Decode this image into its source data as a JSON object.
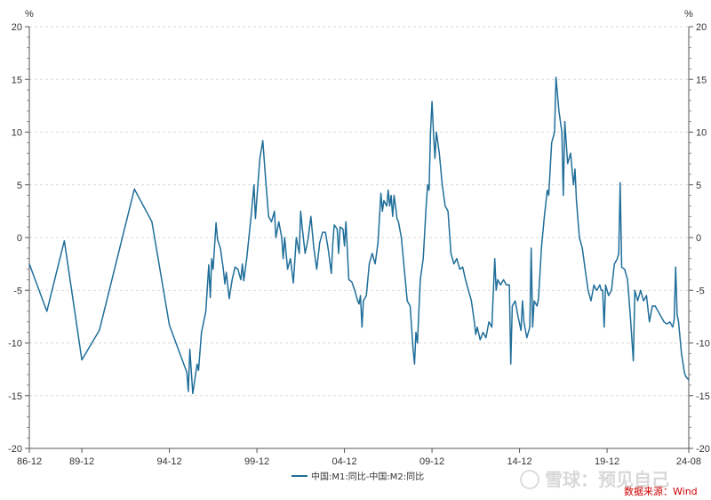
{
  "chart_data": {
    "type": "line",
    "title": "",
    "xlabel": "",
    "ylabel": "%",
    "ylabel_right": "%",
    "ylim": [
      -20,
      20
    ],
    "yticks": [
      20,
      15,
      10,
      5,
      0,
      -5,
      -10,
      -15,
      -20
    ],
    "grid": true,
    "legend_position": "bottom",
    "line_color": "#1f6e99",
    "xlim": [
      "1986-12",
      "2024-08"
    ],
    "xtick_labels": [
      "86-12",
      "89-12",
      "94-12",
      "99-12",
      "04-12",
      "09-12",
      "14-12",
      "19-12",
      "24-08"
    ],
    "xtick_dates": [
      "1986-12",
      "1989-12",
      "1994-12",
      "1999-12",
      "2004-12",
      "2009-12",
      "2014-12",
      "2019-12",
      "2024-08"
    ],
    "series": [
      {
        "name": "中国:M1:同比-中国:M2:同比",
        "points": [
          [
            "1986-12",
            -2.5
          ],
          [
            "1987-12",
            -7.0
          ],
          [
            "1988-12",
            -0.3
          ],
          [
            "1989-12",
            -11.6
          ],
          [
            "1990-12",
            -8.8
          ],
          [
            "1992-12",
            4.6
          ],
          [
            "1993-12",
            1.5
          ],
          [
            "1994-12",
            -8.3
          ],
          [
            "1995-12",
            -12.8
          ],
          [
            "1996-01",
            -14.6
          ],
          [
            "1996-02",
            -10.6
          ],
          [
            "1996-04",
            -14.8
          ],
          [
            "1996-07",
            -12.0
          ],
          [
            "1996-08",
            -12.6
          ],
          [
            "1996-10",
            -9.0
          ],
          [
            "1997-01",
            -7.0
          ],
          [
            "1997-03",
            -2.6
          ],
          [
            "1997-04",
            -5.7
          ],
          [
            "1997-05",
            -2.0
          ],
          [
            "1997-06",
            -3.0
          ],
          [
            "1997-08",
            1.4
          ],
          [
            "1997-09",
            -0.2
          ],
          [
            "1997-11",
            -1.0
          ],
          [
            "1998-01",
            -3.0
          ],
          [
            "1998-02",
            -4.4
          ],
          [
            "1998-03",
            -3.3
          ],
          [
            "1998-05",
            -5.8
          ],
          [
            "1998-07",
            -4.0
          ],
          [
            "1998-09",
            -2.8
          ],
          [
            "1998-11",
            -3.0
          ],
          [
            "1999-01",
            -4.0
          ],
          [
            "1999-02",
            -2.5
          ],
          [
            "1999-03",
            -4.1
          ],
          [
            "1999-05",
            -2.0
          ],
          [
            "1999-08",
            2.0
          ],
          [
            "1999-10",
            5.0
          ],
          [
            "1999-11",
            1.8
          ],
          [
            "1999-12",
            3.8
          ],
          [
            "2000-02",
            7.5
          ],
          [
            "2000-04",
            9.2
          ],
          [
            "2000-06",
            5.5
          ],
          [
            "2000-08",
            2.0
          ],
          [
            "2000-10",
            1.5
          ],
          [
            "2000-12",
            2.5
          ],
          [
            "2001-01",
            0.0
          ],
          [
            "2001-03",
            1.5
          ],
          [
            "2001-05",
            0.0
          ],
          [
            "2001-06",
            -2.0
          ],
          [
            "2001-07",
            0.0
          ],
          [
            "2001-09",
            -3.0
          ],
          [
            "2001-11",
            -2.0
          ],
          [
            "2002-01",
            -4.3
          ],
          [
            "2002-03",
            0.0
          ],
          [
            "2002-05",
            -1.5
          ],
          [
            "2002-06",
            2.5
          ],
          [
            "2002-07",
            1.0
          ],
          [
            "2002-09",
            -1.5
          ],
          [
            "2002-11",
            -0.2
          ],
          [
            "2003-01",
            2.0
          ],
          [
            "2003-03",
            -1.0
          ],
          [
            "2003-05",
            -3.0
          ],
          [
            "2003-07",
            -0.5
          ],
          [
            "2003-09",
            0.5
          ],
          [
            "2003-11",
            0.5
          ],
          [
            "2004-01",
            -1.2
          ],
          [
            "2004-03",
            -3.4
          ],
          [
            "2004-04",
            -0.5
          ],
          [
            "2004-05",
            1.2
          ],
          [
            "2004-07",
            0.8
          ],
          [
            "2004-08",
            -1.5
          ],
          [
            "2004-09",
            1.0
          ],
          [
            "2004-11",
            0.8
          ],
          [
            "2004-12",
            -0.8
          ],
          [
            "2005-01",
            1.5
          ],
          [
            "2005-03",
            -4.0
          ],
          [
            "2005-05",
            -4.2
          ],
          [
            "2005-07",
            -5.0
          ],
          [
            "2005-09",
            -6.0
          ],
          [
            "2005-10",
            -6.3
          ],
          [
            "2005-11",
            -5.5
          ],
          [
            "2005-12",
            -8.5
          ],
          [
            "2006-01",
            -6.0
          ],
          [
            "2006-03",
            -5.5
          ],
          [
            "2006-05",
            -2.5
          ],
          [
            "2006-07",
            -1.5
          ],
          [
            "2006-09",
            -2.5
          ],
          [
            "2006-11",
            -0.5
          ],
          [
            "2007-01",
            4.2
          ],
          [
            "2007-02",
            2.5
          ],
          [
            "2007-03",
            3.5
          ],
          [
            "2007-05",
            3.0
          ],
          [
            "2007-06",
            4.5
          ],
          [
            "2007-07",
            3.0
          ],
          [
            "2007-08",
            4.0
          ],
          [
            "2007-09",
            2.0
          ],
          [
            "2007-10",
            4.0
          ],
          [
            "2007-11",
            3.0
          ],
          [
            "2007-12",
            1.8
          ],
          [
            "2008-01",
            1.5
          ],
          [
            "2008-03",
            0.0
          ],
          [
            "2008-05",
            -3.0
          ],
          [
            "2008-07",
            -6.0
          ],
          [
            "2008-09",
            -6.5
          ],
          [
            "2008-10",
            -8.5
          ],
          [
            "2008-11",
            -10.5
          ],
          [
            "2008-12",
            -12.0
          ],
          [
            "2009-01",
            -9.0
          ],
          [
            "2009-02",
            -10.0
          ],
          [
            "2009-04",
            -4.0
          ],
          [
            "2009-06",
            -2.0
          ],
          [
            "2009-08",
            3.0
          ],
          [
            "2009-09",
            5.0
          ],
          [
            "2009-10",
            4.5
          ],
          [
            "2009-11",
            10.0
          ],
          [
            "2009-12",
            12.9
          ],
          [
            "2010-01",
            10.0
          ],
          [
            "2010-02",
            7.5
          ],
          [
            "2010-03",
            10.0
          ],
          [
            "2010-05",
            8.0
          ],
          [
            "2010-07",
            5.0
          ],
          [
            "2010-09",
            3.0
          ],
          [
            "2010-11",
            2.5
          ],
          [
            "2011-01",
            -1.5
          ],
          [
            "2011-03",
            -2.5
          ],
          [
            "2011-05",
            -2.0
          ],
          [
            "2011-07",
            -3.0
          ],
          [
            "2011-09",
            -2.8
          ],
          [
            "2011-11",
            -4.0
          ],
          [
            "2012-01",
            -5.0
          ],
          [
            "2012-03",
            -6.0
          ],
          [
            "2012-05",
            -8.0
          ],
          [
            "2012-06",
            -9.2
          ],
          [
            "2012-07",
            -8.5
          ],
          [
            "2012-09",
            -9.7
          ],
          [
            "2012-11",
            -9.0
          ],
          [
            "2013-01",
            -9.5
          ],
          [
            "2013-03",
            -8.0
          ],
          [
            "2013-05",
            -8.5
          ],
          [
            "2013-07",
            -2.0
          ],
          [
            "2013-08",
            -5.0
          ],
          [
            "2013-09",
            -4.0
          ],
          [
            "2013-11",
            -4.5
          ],
          [
            "2014-01",
            -4.0
          ],
          [
            "2014-03",
            -4.5
          ],
          [
            "2014-05",
            -4.5
          ],
          [
            "2014-06",
            -12.0
          ],
          [
            "2014-07",
            -6.5
          ],
          [
            "2014-09",
            -6.0
          ],
          [
            "2014-11",
            -7.5
          ],
          [
            "2015-01",
            -8.8
          ],
          [
            "2015-02",
            -6.0
          ],
          [
            "2015-03",
            -8.0
          ],
          [
            "2015-05",
            -9.5
          ],
          [
            "2015-07",
            -8.5
          ],
          [
            "2015-08",
            -1.0
          ],
          [
            "2015-09",
            -8.5
          ],
          [
            "2015-10",
            -6.0
          ],
          [
            "2015-12",
            -6.5
          ],
          [
            "2016-01",
            -5.8
          ],
          [
            "2016-03",
            -1.0
          ],
          [
            "2016-05",
            2.0
          ],
          [
            "2016-07",
            4.5
          ],
          [
            "2016-08",
            4.0
          ],
          [
            "2016-10",
            9.0
          ],
          [
            "2016-12",
            10.0
          ],
          [
            "2017-01",
            15.2
          ],
          [
            "2017-03",
            12.0
          ],
          [
            "2017-05",
            10.0
          ],
          [
            "2017-06",
            4.0
          ],
          [
            "2017-07",
            11.0
          ],
          [
            "2017-09",
            7.0
          ],
          [
            "2017-11",
            8.0
          ],
          [
            "2018-01",
            5.0
          ],
          [
            "2018-02",
            6.5
          ],
          [
            "2018-03",
            3.5
          ],
          [
            "2018-05",
            0.0
          ],
          [
            "2018-07",
            -1.0
          ],
          [
            "2018-09",
            -3.0
          ],
          [
            "2018-11",
            -5.0
          ],
          [
            "2019-01",
            -6.0
          ],
          [
            "2019-03",
            -4.5
          ],
          [
            "2019-04",
            -4.8
          ],
          [
            "2019-05",
            -5.0
          ],
          [
            "2019-07",
            -4.5
          ],
          [
            "2019-08",
            -5.0
          ],
          [
            "2019-09",
            -5.0
          ],
          [
            "2019-10",
            -8.5
          ],
          [
            "2019-11",
            -4.5
          ],
          [
            "2020-01",
            -5.5
          ],
          [
            "2020-03",
            -5.0
          ],
          [
            "2020-05",
            -2.5
          ],
          [
            "2020-07",
            -2.0
          ],
          [
            "2020-08",
            -1.5
          ],
          [
            "2020-09",
            5.2
          ],
          [
            "2020-10",
            -2.8
          ],
          [
            "2020-12",
            -3.0
          ],
          [
            "2021-02",
            -4.0
          ],
          [
            "2021-04",
            -7.5
          ],
          [
            "2021-06",
            -11.7
          ],
          [
            "2021-07",
            -5.0
          ],
          [
            "2021-09",
            -6.0
          ],
          [
            "2021-11",
            -5.0
          ],
          [
            "2022-01",
            -6.0
          ],
          [
            "2022-03",
            -5.5
          ],
          [
            "2022-05",
            -8.0
          ],
          [
            "2022-07",
            -6.5
          ],
          [
            "2022-09",
            -6.5
          ],
          [
            "2022-11",
            -7.0
          ],
          [
            "2023-01",
            -7.5
          ],
          [
            "2023-03",
            -8.0
          ],
          [
            "2023-05",
            -8.2
          ],
          [
            "2023-07",
            -8.0
          ],
          [
            "2023-09",
            -8.5
          ],
          [
            "2023-10",
            -7.8
          ],
          [
            "2023-11",
            -2.8
          ],
          [
            "2023-12",
            -7.3
          ],
          [
            "2024-01",
            -8.0
          ],
          [
            "2024-03",
            -11.0
          ],
          [
            "2024-05",
            -12.8
          ],
          [
            "2024-06",
            -13.2
          ],
          [
            "2024-08",
            -13.5
          ]
        ]
      }
    ]
  },
  "legend": {
    "label": "中国:M1:同比-中国:M2:同比"
  },
  "source": {
    "text": "数据来源：Wind"
  },
  "watermark": {
    "text": "雪球：预见自己"
  }
}
